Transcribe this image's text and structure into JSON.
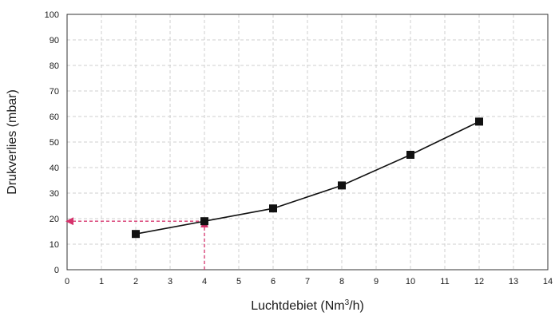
{
  "chart_data": {
    "type": "line",
    "title": "",
    "xlabel": "Luchtdebiet (Nm³/h)",
    "ylabel": "Drukverlies (mbar)",
    "xlim": [
      0,
      14
    ],
    "ylim": [
      0,
      100
    ],
    "x_ticks": [
      "0",
      "1",
      "2",
      "3",
      "4",
      "5",
      "6",
      "7",
      "8",
      "9",
      "10",
      "11",
      "12",
      "13",
      "14"
    ],
    "y_ticks": [
      "0",
      "10",
      "20",
      "30",
      "40",
      "50",
      "60",
      "70",
      "80",
      "90",
      "100"
    ],
    "grid": true,
    "legend": "none",
    "series": [
      {
        "x": [
          2,
          4,
          6,
          8,
          10,
          12
        ],
        "y": [
          14,
          19,
          24,
          33,
          45,
          58
        ],
        "marker": "square",
        "color": "#111111"
      }
    ],
    "annotations": [
      {
        "type": "dashed-arrow",
        "from": [
          4,
          0
        ],
        "to": [
          4,
          19
        ],
        "color": "#d6336c"
      },
      {
        "type": "dashed-arrow",
        "from": [
          4,
          19
        ],
        "to": [
          0,
          19
        ],
        "color": "#d6336c"
      }
    ]
  }
}
